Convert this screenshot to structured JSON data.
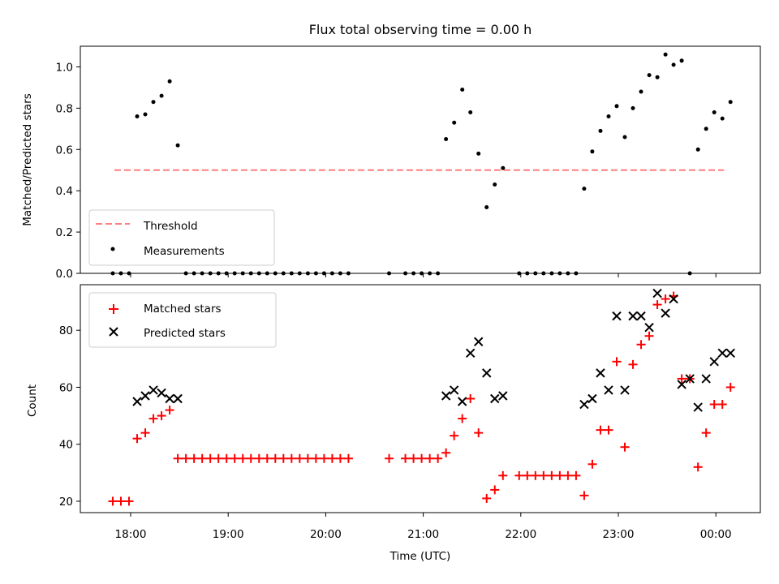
{
  "chart_data": [
    {
      "type": "scatter",
      "title": "Flux total observing time = 0.00 h",
      "xlabel": "",
      "ylabel": "Matched/Predicted stars",
      "ylim": [
        0,
        1.1
      ],
      "yticks": [
        "0.0",
        "0.2",
        "0.4",
        "0.6",
        "0.8",
        "1.0"
      ],
      "legend_position": "lower-left",
      "threshold": {
        "name": "Threshold",
        "value": 0.5,
        "x_start": "17:50",
        "x_end": "00:05",
        "color": "#ff7f7f",
        "style": "dashed"
      },
      "series": [
        {
          "name": "Measurements",
          "color": "#000000",
          "marker": "dot",
          "x": [
            "17:49",
            "17:54",
            "17:59",
            "18:04",
            "18:09",
            "18:14",
            "18:19",
            "18:24",
            "18:29",
            "18:34",
            "18:39",
            "18:44",
            "18:49",
            "18:54",
            "18:59",
            "19:04",
            "19:09",
            "19:14",
            "19:19",
            "19:24",
            "19:29",
            "19:34",
            "19:39",
            "19:44",
            "19:49",
            "19:54",
            "19:59",
            "20:04",
            "20:09",
            "20:14",
            "20:39",
            "20:49",
            "20:54",
            "20:59",
            "21:04",
            "21:09",
            "21:14",
            "21:19",
            "21:24",
            "21:29",
            "21:34",
            "21:39",
            "21:44",
            "21:49",
            "21:59",
            "22:04",
            "22:09",
            "22:14",
            "22:19",
            "22:24",
            "22:29",
            "22:34",
            "22:39",
            "22:44",
            "22:49",
            "22:54",
            "22:59",
            "23:04",
            "23:09",
            "23:14",
            "23:19",
            "23:24",
            "23:29",
            "23:34",
            "23:39",
            "23:44",
            "23:49",
            "23:54",
            "23:59",
            "00:04",
            "00:09"
          ],
          "y": [
            0,
            0,
            0,
            0.76,
            0.77,
            0.83,
            0.86,
            0.93,
            0.62,
            0,
            0,
            0,
            0,
            0,
            0,
            0,
            0,
            0,
            0,
            0,
            0,
            0,
            0,
            0,
            0,
            0,
            0,
            0,
            0,
            0,
            0,
            0,
            0,
            0,
            0,
            0,
            0.65,
            0.73,
            0.89,
            0.78,
            0.58,
            0.32,
            0.43,
            0.51,
            0,
            0,
            0,
            0,
            0,
            0,
            0,
            0,
            0.41,
            0.59,
            0.69,
            0.76,
            0.81,
            0.66,
            0.8,
            0.88,
            0.96,
            0.95,
            1.06,
            1.01,
            1.03,
            0,
            0.6,
            0.7,
            0.78,
            0.75,
            0.83
          ]
        }
      ]
    },
    {
      "type": "scatter",
      "title": "",
      "xlabel": "Time (UTC)",
      "ylabel": "Count",
      "ylim": [
        16,
        96
      ],
      "yticks": [
        "20",
        "40",
        "60",
        "80"
      ],
      "xticks": [
        "18:00",
        "19:00",
        "20:00",
        "21:00",
        "22:00",
        "23:00",
        "00:00"
      ],
      "legend_position": "upper-left",
      "series": [
        {
          "name": "Matched stars",
          "color": "#ff0000",
          "marker": "plus",
          "x": [
            "17:49",
            "17:54",
            "17:59",
            "18:04",
            "18:09",
            "18:14",
            "18:19",
            "18:24",
            "18:29",
            "18:34",
            "18:39",
            "18:44",
            "18:49",
            "18:54",
            "18:59",
            "19:04",
            "19:09",
            "19:14",
            "19:19",
            "19:24",
            "19:29",
            "19:34",
            "19:39",
            "19:44",
            "19:49",
            "19:54",
            "19:59",
            "20:04",
            "20:09",
            "20:14",
            "20:39",
            "20:49",
            "20:54",
            "20:59",
            "21:04",
            "21:09",
            "21:14",
            "21:19",
            "21:24",
            "21:29",
            "21:34",
            "21:39",
            "21:44",
            "21:49",
            "21:59",
            "22:04",
            "22:09",
            "22:14",
            "22:19",
            "22:24",
            "22:29",
            "22:34",
            "22:39",
            "22:44",
            "22:49",
            "22:54",
            "22:59",
            "23:04",
            "23:09",
            "23:14",
            "23:19",
            "23:24",
            "23:29",
            "23:34",
            "23:39",
            "23:44",
            "23:49",
            "23:54",
            "23:59",
            "00:04",
            "00:09"
          ],
          "y": [
            20,
            20,
            20,
            42,
            44,
            49,
            50,
            52,
            35,
            35,
            35,
            35,
            35,
            35,
            35,
            35,
            35,
            35,
            35,
            35,
            35,
            35,
            35,
            35,
            35,
            35,
            35,
            35,
            35,
            35,
            35,
            35,
            35,
            35,
            35,
            35,
            37,
            43,
            49,
            56,
            44,
            21,
            24,
            29,
            29,
            29,
            29,
            29,
            29,
            29,
            29,
            29,
            22,
            33,
            45,
            45,
            69,
            39,
            68,
            75,
            78,
            89,
            91,
            92,
            63,
            63,
            32,
            44,
            54,
            54,
            60
          ]
        },
        {
          "name": "Predicted stars",
          "color": "#000000",
          "marker": "x",
          "x": [
            "18:04",
            "18:09",
            "18:14",
            "18:19",
            "18:24",
            "18:29",
            "21:14",
            "21:19",
            "21:24",
            "21:29",
            "21:34",
            "21:39",
            "21:44",
            "21:49",
            "22:39",
            "22:44",
            "22:49",
            "22:54",
            "22:59",
            "23:04",
            "23:09",
            "23:14",
            "23:19",
            "23:24",
            "23:29",
            "23:34",
            "23:39",
            "23:44",
            "23:49",
            "23:54",
            "23:59",
            "00:04",
            "00:09"
          ],
          "y": [
            55,
            57,
            59,
            58,
            56,
            56,
            57,
            59,
            55,
            72,
            76,
            65,
            56,
            57,
            54,
            56,
            65,
            59,
            85,
            59,
            85,
            85,
            81,
            93,
            86,
            91,
            61,
            63,
            53,
            63,
            69,
            72,
            72
          ]
        }
      ]
    }
  ]
}
